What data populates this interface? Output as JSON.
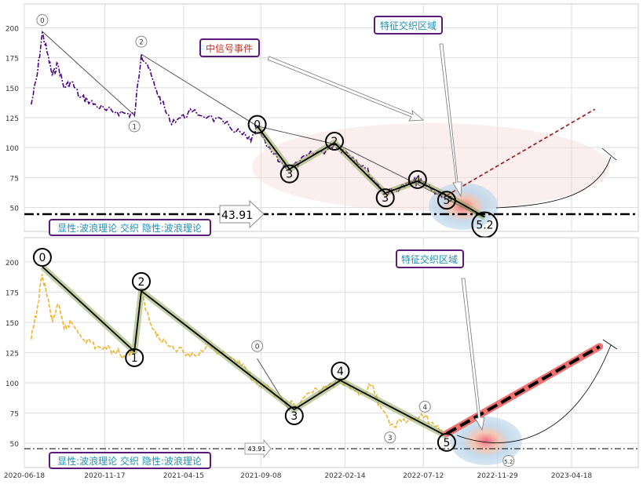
{
  "chart_data": [
    {
      "type": "line",
      "title": "",
      "xlabel": "",
      "ylabel": "",
      "ylim": [
        30,
        220
      ],
      "yticks": [
        50,
        75,
        100,
        125,
        150,
        175,
        200
      ],
      "xticks": [
        "2020-06-18",
        "2020-11-17",
        "2021-04-15",
        "2021-09-08",
        "2022-02-14",
        "2022-07-12",
        "2022-11-29",
        "2023-04-18"
      ],
      "show_xtick_labels": false,
      "grid": true,
      "price_color": "#4b0082",
      "price_series": [
        [
          "2020-07-01",
          136
        ],
        [
          "2020-07-12",
          160
        ],
        [
          "2020-07-22",
          196
        ],
        [
          "2020-08-01",
          178
        ],
        [
          "2020-08-10",
          160
        ],
        [
          "2020-08-20",
          170
        ],
        [
          "2020-09-01",
          150
        ],
        [
          "2020-09-15",
          155
        ],
        [
          "2020-10-01",
          142
        ],
        [
          "2020-10-15",
          140
        ],
        [
          "2020-11-01",
          135
        ],
        [
          "2020-11-20",
          131
        ],
        [
          "2020-12-10",
          130
        ],
        [
          "2021-01-01",
          128
        ],
        [
          "2021-01-12",
          127
        ],
        [
          "2021-01-25",
          178
        ],
        [
          "2021-02-05",
          170
        ],
        [
          "2021-02-20",
          150
        ],
        [
          "2021-03-05",
          138
        ],
        [
          "2021-03-20",
          122
        ],
        [
          "2021-04-10",
          125
        ],
        [
          "2021-05-01",
          130
        ],
        [
          "2021-06-01",
          126
        ],
        [
          "2021-07-01",
          120
        ],
        [
          "2021-08-01",
          112
        ],
        [
          "2021-08-20",
          105
        ],
        [
          "2021-09-01",
          118
        ],
        [
          "2021-09-20",
          100
        ],
        [
          "2021-10-15",
          88
        ],
        [
          "2021-11-01",
          82
        ],
        [
          "2021-11-20",
          88
        ],
        [
          "2021-12-15",
          95
        ],
        [
          "2022-01-10",
          98
        ],
        [
          "2022-01-25",
          103
        ],
        [
          "2022-02-10",
          98
        ],
        [
          "2022-03-01",
          92
        ],
        [
          "2022-03-20",
          85
        ],
        [
          "2022-04-15",
          70
        ],
        [
          "2022-05-01",
          62
        ],
        [
          "2022-05-20",
          65
        ],
        [
          "2022-06-15",
          70
        ],
        [
          "2022-07-01",
          72
        ],
        [
          "2022-07-20",
          68
        ],
        [
          "2022-08-10",
          62
        ],
        [
          "2022-08-25",
          60
        ]
      ],
      "channel_lines": [
        {
          "from": [
            "2020-07-22",
            197
          ],
          "to": [
            "2021-01-12",
            127
          ]
        },
        {
          "from": [
            "2021-01-25",
            178
          ],
          "to": [
            "2021-09-01",
            118
          ]
        },
        {
          "from": [
            "2021-09-01",
            118
          ],
          "to": [
            "2022-01-25",
            103
          ]
        },
        {
          "from": [
            "2022-01-25",
            104
          ],
          "to": [
            "2022-11-01",
            42
          ]
        }
      ],
      "wave_small": [
        {
          "label": "0",
          "x": "2020-07-22",
          "y": 196
        },
        {
          "label": "1",
          "x": "2021-01-12",
          "y": 127
        },
        {
          "label": "2",
          "x": "2021-01-25",
          "y": 178
        }
      ],
      "wave_large": [
        {
          "label": "0",
          "x": "2021-09-01",
          "y": 118
        },
        {
          "label": "3",
          "x": "2021-11-01",
          "y": 82
        },
        {
          "label": "2",
          "x": "2022-01-25",
          "y": 104
        },
        {
          "label": "3",
          "x": "2022-05-01",
          "y": 62
        },
        {
          "label": "4",
          "x": "2022-07-01",
          "y": 72
        },
        {
          "label": "5",
          "x": "2022-08-25",
          "y": 60
        },
        {
          "label": "5.2",
          "x": "2022-11-05",
          "y": 42
        }
      ],
      "small_label": {
        "text": "5",
        "x": "2022-08-31",
        "y": 55
      },
      "projection": {
        "from": [
          "2022-08-25",
          60
        ],
        "to": [
          "2023-06-01",
          132
        ]
      },
      "arc_to": [
        "2023-05-20",
        90
      ],
      "support_value": 43.91,
      "support_label": "43.91",
      "annotations": [
        {
          "text": "中信号事件",
          "color": "#c0392b"
        },
        {
          "text": "特征交织区域",
          "color": "#1f8fb5"
        }
      ],
      "legend_text": "显性:波浪理论 交织 隐性:波浪理论"
    },
    {
      "type": "line",
      "title": "",
      "xlabel": "",
      "ylabel": "",
      "ylim": [
        30,
        220
      ],
      "yticks": [
        50,
        75,
        100,
        125,
        150,
        175,
        200
      ],
      "xticks": [
        "2020-06-18",
        "2020-11-17",
        "2021-04-15",
        "2021-09-08",
        "2022-02-14",
        "2022-07-12",
        "2022-11-29",
        "2023-04-18"
      ],
      "show_xtick_labels": true,
      "grid": true,
      "price_color": "#f0b432",
      "price_series": [
        [
          "2020-07-01",
          136
        ],
        [
          "2020-07-12",
          160
        ],
        [
          "2020-07-22",
          190
        ],
        [
          "2020-08-01",
          170
        ],
        [
          "2020-08-10",
          150
        ],
        [
          "2020-08-20",
          165
        ],
        [
          "2020-09-01",
          145
        ],
        [
          "2020-09-15",
          150
        ],
        [
          "2020-10-01",
          140
        ],
        [
          "2020-10-15",
          135
        ],
        [
          "2020-11-01",
          130
        ],
        [
          "2020-11-20",
          128
        ],
        [
          "2020-12-10",
          126
        ],
        [
          "2020-12-25",
          122
        ],
        [
          "2021-01-12",
          128
        ],
        [
          "2021-01-25",
          175
        ],
        [
          "2021-02-10",
          150
        ],
        [
          "2021-02-25",
          140
        ],
        [
          "2021-03-20",
          130
        ],
        [
          "2021-04-15",
          125
        ],
        [
          "2021-05-10",
          122
        ],
        [
          "2021-06-01",
          133
        ],
        [
          "2021-06-20",
          125
        ],
        [
          "2021-07-15",
          120
        ],
        [
          "2021-08-10",
          112
        ],
        [
          "2021-08-25",
          103
        ],
        [
          "2021-09-15",
          98
        ],
        [
          "2021-10-15",
          86
        ],
        [
          "2021-11-15",
          80
        ],
        [
          "2021-12-15",
          92
        ],
        [
          "2022-01-10",
          96
        ],
        [
          "2022-02-05",
          100
        ],
        [
          "2022-02-25",
          95
        ],
        [
          "2022-03-20",
          92
        ],
        [
          "2022-04-05",
          98
        ],
        [
          "2022-04-20",
          82
        ],
        [
          "2022-05-10",
          65
        ],
        [
          "2022-06-01",
          68
        ],
        [
          "2022-06-25",
          70
        ],
        [
          "2022-07-15",
          72
        ],
        [
          "2022-08-05",
          64
        ],
        [
          "2022-08-25",
          56
        ]
      ],
      "channel_lines": [
        {
          "from": [
            "2021-09-01",
            120
          ],
          "to": [
            "2021-11-01",
            77
          ]
        }
      ],
      "wave_small": [
        {
          "label": "0",
          "x": "2021-09-01",
          "y": 120
        },
        {
          "label": "3",
          "x": "2022-05-10",
          "y": 64
        },
        {
          "label": "4",
          "x": "2022-07-15",
          "y": 70
        },
        {
          "label": "5.2",
          "x": "2022-12-20",
          "y": 42
        }
      ],
      "wave_large": [
        {
          "label": "0",
          "x": "2020-07-22",
          "y": 196
        },
        {
          "label": "1",
          "x": "2021-01-12",
          "y": 126
        },
        {
          "label": "2",
          "x": "2021-01-25",
          "y": 176
        },
        {
          "label": "3",
          "x": "2021-11-10",
          "y": 78
        },
        {
          "label": "4",
          "x": "2022-02-05",
          "y": 102
        },
        {
          "label": "5",
          "x": "2022-08-25",
          "y": 56
        }
      ],
      "small_label": null,
      "projection": {
        "from": [
          "2022-08-25",
          58
        ],
        "to": [
          "2023-06-10",
          130
        ]
      },
      "arc_to": [
        "2023-06-10",
        130
      ],
      "support_value": 43.91,
      "support_label": "43.91",
      "annotations": [
        {
          "text": "特征交织区域",
          "color": "#1f8fb5"
        }
      ],
      "legend_text": "显性:波浪理论 交织 隐性:波浪理论"
    }
  ]
}
